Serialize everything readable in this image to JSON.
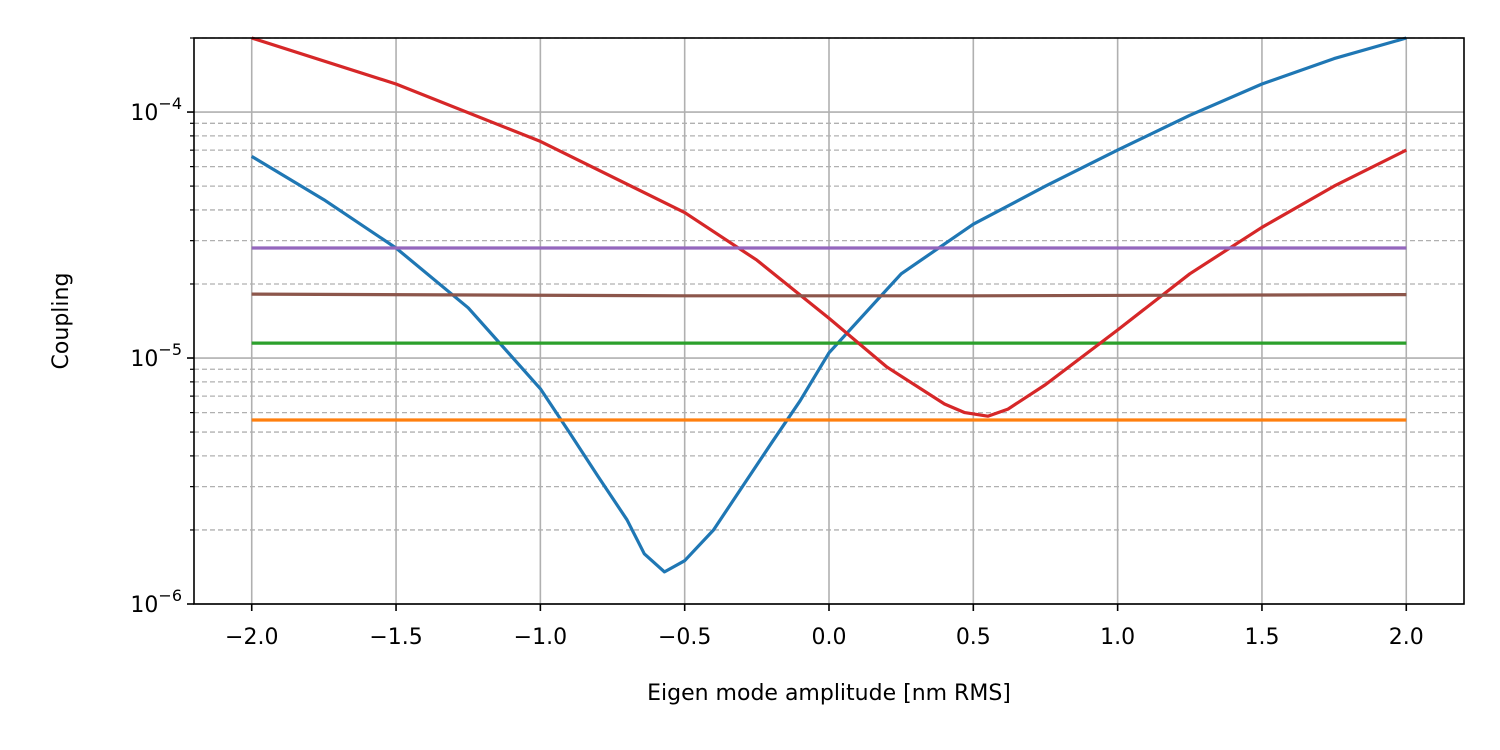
{
  "chart_data": {
    "type": "line",
    "title": "",
    "xlabel": "Eigen mode amplitude [nm RMS]",
    "ylabel": "Coupling",
    "xlim": [
      -2.2,
      2.2
    ],
    "ylim": [
      1e-06,
      0.0002
    ],
    "yscale": "log",
    "grid": {
      "major": "solid",
      "minor_y": "dashed"
    },
    "legend": "none",
    "x_ticks": [
      -2.0,
      -1.5,
      -1.0,
      -0.5,
      0.0,
      0.5,
      1.0,
      1.5,
      2.0
    ],
    "x_tick_labels": [
      "−2.0",
      "−1.5",
      "−1.0",
      "−0.5",
      "0.0",
      "0.5",
      "1.0",
      "1.5",
      "2.0"
    ],
    "y_ticks": [
      1e-06,
      1e-05,
      0.0001
    ],
    "y_tick_labels": [
      {
        "base": "10",
        "exp": "−6"
      },
      {
        "base": "10",
        "exp": "−5"
      },
      {
        "base": "10",
        "exp": "−4"
      }
    ],
    "series": [
      {
        "color": "#1f77b4",
        "x": [
          -2.0,
          -1.75,
          -1.5,
          -1.25,
          -1.0,
          -0.9,
          -0.8,
          -0.7,
          -0.64,
          -0.57,
          -0.5,
          -0.4,
          -0.3,
          -0.2,
          -0.1,
          0.0,
          0.25,
          0.5,
          0.75,
          1.0,
          1.25,
          1.5,
          1.75,
          2.0
        ],
        "y": [
          6.6e-05,
          4.4e-05,
          2.8e-05,
          1.6e-05,
          7.5e-06,
          5e-06,
          3.3e-06,
          2.2e-06,
          1.6e-06,
          1.35e-06,
          1.5e-06,
          2e-06,
          3e-06,
          4.5e-06,
          6.7e-06,
          1.05e-05,
          2.2e-05,
          3.5e-05,
          5e-05,
          7e-05,
          9.7e-05,
          0.00013,
          0.000165,
          0.0002
        ]
      },
      {
        "color": "#ff7f0e",
        "x": [
          -2.0,
          2.0
        ],
        "y": [
          5.6e-06,
          5.6e-06
        ]
      },
      {
        "color": "#2ca02c",
        "x": [
          -2.0,
          2.0
        ],
        "y": [
          1.15e-05,
          1.15e-05
        ]
      },
      {
        "color": "#d62728",
        "x": [
          -2.0,
          -1.5,
          -1.0,
          -0.5,
          -0.25,
          0.0,
          0.2,
          0.4,
          0.47,
          0.55,
          0.62,
          0.75,
          1.0,
          1.25,
          1.5,
          1.75,
          2.0
        ],
        "y": [
          0.0002,
          0.00013,
          7.6e-05,
          3.9e-05,
          2.5e-05,
          1.45e-05,
          9.2e-06,
          6.5e-06,
          6e-06,
          5.8e-06,
          6.2e-06,
          7.8e-06,
          1.3e-05,
          2.2e-05,
          3.4e-05,
          5e-05,
          7e-05
        ]
      },
      {
        "color": "#9467bd",
        "x": [
          -2.0,
          2.0
        ],
        "y": [
          2.8e-05,
          2.8e-05
        ]
      },
      {
        "color": "#8c564b",
        "x": [
          -2.0,
          -0.5,
          0.5,
          2.0
        ],
        "y": [
          1.82e-05,
          1.79e-05,
          1.79e-05,
          1.81e-05
        ]
      }
    ]
  }
}
